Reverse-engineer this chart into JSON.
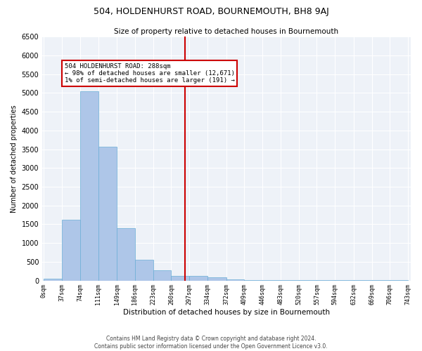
{
  "title": "504, HOLDENHURST ROAD, BOURNEMOUTH, BH8 9AJ",
  "subtitle": "Size of property relative to detached houses in Bournemouth",
  "xlabel": "Distribution of detached houses by size in Bournemouth",
  "ylabel": "Number of detached properties",
  "footer1": "Contains HM Land Registry data © Crown copyright and database right 2024.",
  "footer2": "Contains public sector information licensed under the Open Government Licence v3.0.",
  "property_line_x": 288,
  "annotation_title": "504 HOLDENHURST ROAD: 288sqm",
  "annotation_line1": "← 98% of detached houses are smaller (12,671)",
  "annotation_line2": "1% of semi-detached houses are larger (191) →",
  "bar_edges": [
    0,
    37,
    74,
    111,
    149,
    186,
    223,
    260,
    297,
    334,
    372,
    409,
    446,
    483,
    520,
    557,
    594,
    632,
    669,
    706,
    743
  ],
  "bar_heights": [
    50,
    1620,
    5050,
    3560,
    1390,
    560,
    270,
    120,
    130,
    80,
    30,
    10,
    10,
    5,
    5,
    5,
    5,
    5,
    5,
    5
  ],
  "bar_color": "#aec6e8",
  "bar_edge_color": "#6aaed6",
  "vline_color": "#cc0000",
  "annotation_box_color": "#cc0000",
  "background_color": "#eef2f8",
  "ylim": [
    0,
    6500
  ],
  "yticks": [
    0,
    500,
    1000,
    1500,
    2000,
    2500,
    3000,
    3500,
    4000,
    4500,
    5000,
    5500,
    6000,
    6500
  ]
}
